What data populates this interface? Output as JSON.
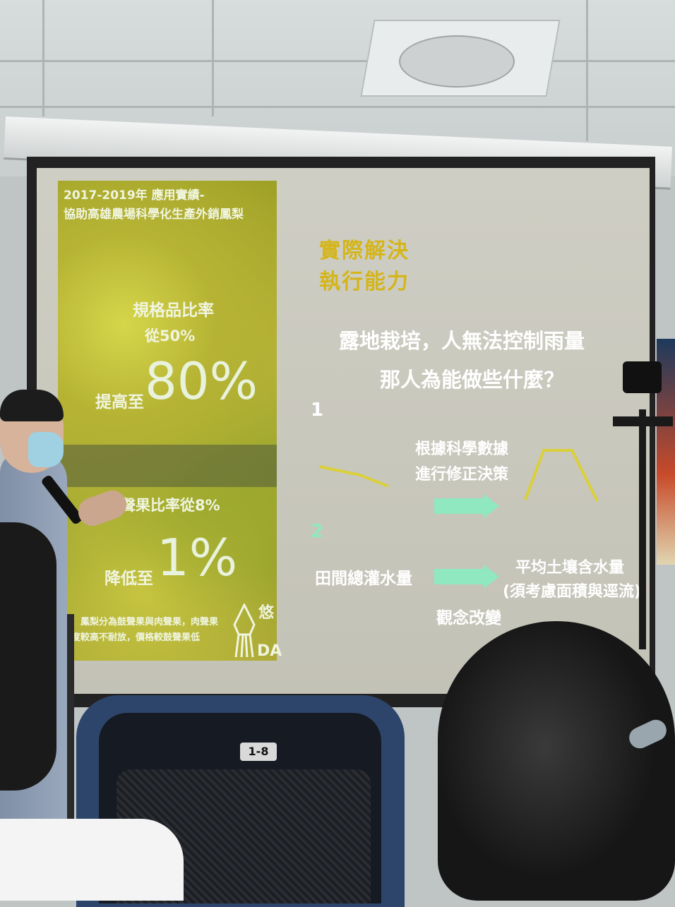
{
  "slide": {
    "left_panel": {
      "header_line1": "2017-2019年 應用實績-",
      "header_line2": "協助高雄農場科學化生產外銷鳳梨",
      "stat1_label_line1": "規格品比率",
      "stat1_label_line2": "從50%",
      "stat1_prefix": "提高至",
      "stat1_value": "80%",
      "stat2_label": "肉聲果比率從8%",
      "stat2_prefix": "降低至",
      "stat2_value": "1%",
      "footnote_line1": "註：鳳梨分為鼓聲果與肉聲果，肉聲果",
      "footnote_line2": "熟度較高不耐放，價格較鼓聲果低",
      "logo_text_1": "悠",
      "logo_text_2": "DA"
    },
    "title_line1": "實際解決",
    "title_line2": "執行能力",
    "question_line1": "露地栽培，人無法控制雨量",
    "question_line2": "那人為能做些什麼？",
    "step1_number": "1",
    "step1_result_line1": "根據科學數據",
    "step1_result_line2": "進行修正決策",
    "step2_number": "2",
    "step2_from": "田間總灌水量",
    "step2_to_line1": "平均土壤含水量",
    "step2_to_line2": "(須考慮面積與逕流)",
    "step2_caption": "觀念改變"
  },
  "chair_tag": "1-8",
  "colors": {
    "title_yellow": "#d4b51a",
    "accent_green": "#8fe8c0",
    "line_yellow": "#d9d03a"
  }
}
